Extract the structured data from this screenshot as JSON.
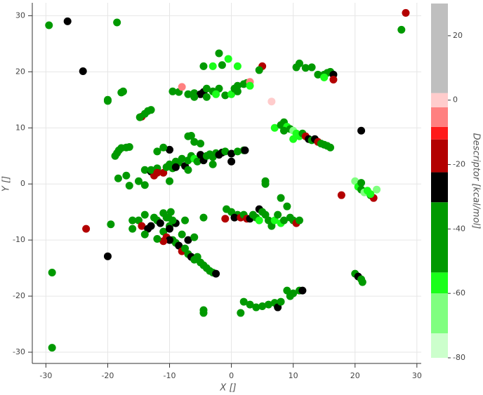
{
  "chart_data": {
    "type": "scatter",
    "xlabel": "X []",
    "ylabel": "Y []",
    "xlim": [
      -32.2,
      30.7
    ],
    "ylim": [
      -32,
      32.3
    ],
    "xticks": [
      -30,
      -20,
      -10,
      0,
      10,
      20,
      30
    ],
    "yticks": [
      -30,
      -20,
      -10,
      0,
      10,
      20,
      30
    ],
    "grid": true,
    "colorbar": {
      "label": "Descriptor [kcal/mol]",
      "lim": [
        -80,
        30
      ],
      "ticks": [
        20,
        0,
        -20,
        -40,
        -60,
        -80
      ],
      "bounds": [
        -80,
        -72.4,
        -60,
        -53.5,
        -31.7,
        -22.4,
        -12.2,
        -8.3,
        -2.2,
        2.2,
        30
      ],
      "colors": [
        "#ccffcc",
        "#80ff80",
        "#1aff1a",
        "#009900",
        "#000000",
        "#b30000",
        "#ff1a1a",
        "#ff8080",
        "#ffcccc",
        "#bfbfbf"
      ]
    },
    "points": [
      [
        -29.5,
        28.3,
        -42
      ],
      [
        -26.5,
        29,
        -27
      ],
      [
        -18.5,
        28.8,
        -42
      ],
      [
        28.2,
        30.5,
        -18
      ],
      [
        27.5,
        27.5,
        -42
      ],
      [
        -24,
        20.1,
        -27
      ],
      [
        -29,
        -15.8,
        -42
      ],
      [
        -29,
        -29.2,
        -42
      ],
      [
        -23.5,
        -8,
        -18
      ],
      [
        -20,
        -12.9,
        -27
      ],
      [
        -19.5,
        -7.2,
        -42
      ],
      [
        -20,
        14.8,
        -42
      ],
      [
        -20,
        15,
        -42
      ],
      [
        -17.5,
        16.5,
        -42
      ],
      [
        -17.8,
        16.3,
        -42
      ],
      [
        -14.5,
        12,
        -18
      ],
      [
        -14,
        12.5,
        -42
      ],
      [
        -13.5,
        13,
        -42
      ],
      [
        -13,
        13.2,
        -42
      ],
      [
        -14.8,
        11.9,
        -42
      ],
      [
        -18.5,
        5.5,
        -42
      ],
      [
        -18.2,
        6,
        -42
      ],
      [
        -17.8,
        6.4,
        -42
      ],
      [
        -17,
        6.5,
        -42
      ],
      [
        -16.5,
        6.6,
        -42
      ],
      [
        -18.8,
        5,
        -42
      ],
      [
        -18.3,
        1,
        -42
      ],
      [
        -17,
        1.5,
        -42
      ],
      [
        -16.5,
        -0.3,
        -42
      ],
      [
        -14,
        2.5,
        -42
      ],
      [
        -13,
        2.2,
        -27
      ],
      [
        -12.5,
        1.5,
        -18
      ],
      [
        -12,
        2.8,
        -42
      ],
      [
        -11,
        2,
        -18
      ],
      [
        -10.5,
        3,
        -42
      ],
      [
        -10,
        3.5,
        -42
      ],
      [
        -9.5,
        2.8,
        -42
      ],
      [
        -9,
        4,
        -42
      ],
      [
        -8.5,
        3.8,
        -42
      ],
      [
        -8,
        4.5,
        -42
      ],
      [
        -7.5,
        3.2,
        -27
      ],
      [
        -7,
        4.2,
        -42
      ],
      [
        -6.5,
        5,
        -42
      ],
      [
        -6,
        4.5,
        -58
      ],
      [
        -5.5,
        4,
        -42
      ],
      [
        -5,
        5.2,
        -27
      ],
      [
        -4.5,
        4.2,
        -27
      ],
      [
        -4,
        5,
        -42
      ],
      [
        -3.5,
        5.3,
        -42
      ],
      [
        -3,
        4.8,
        -42
      ],
      [
        -2.5,
        5.5,
        -42
      ],
      [
        -2,
        5.2,
        -27
      ],
      [
        -1.5,
        5.6,
        -27
      ],
      [
        -1,
        5.8,
        -42
      ],
      [
        0,
        5.4,
        -27
      ],
      [
        1,
        5.8,
        -42
      ],
      [
        2,
        6,
        -42
      ],
      [
        2.2,
        6,
        -27
      ],
      [
        -10,
        6.1,
        -27
      ],
      [
        -11,
        6.5,
        -42
      ],
      [
        -12,
        5.8,
        -42
      ],
      [
        -13,
        2.5,
        -42
      ],
      [
        -9,
        3,
        -27
      ],
      [
        -6,
        7.5,
        -42
      ],
      [
        -5,
        7.2,
        -42
      ],
      [
        -7,
        8.5,
        -42
      ],
      [
        -6.5,
        8.6,
        -42
      ],
      [
        -7,
        2.5,
        -42
      ],
      [
        -3,
        3.5,
        -42
      ],
      [
        0,
        4,
        -27
      ],
      [
        -14,
        -0.2,
        -42
      ],
      [
        -15,
        0.5,
        -42
      ],
      [
        -12,
        2,
        -18
      ],
      [
        -10,
        0.5,
        -42
      ],
      [
        -9.5,
        16.5,
        -42
      ],
      [
        -8.5,
        16.4,
        -42
      ],
      [
        -8,
        17.3,
        -6
      ],
      [
        -7,
        16,
        -42
      ],
      [
        -6,
        16.2,
        -42
      ],
      [
        -5,
        16,
        -27
      ],
      [
        -4.5,
        16.4,
        -27
      ],
      [
        -4,
        17,
        -42
      ],
      [
        -3,
        16.5,
        -42
      ],
      [
        -2,
        17,
        -42
      ],
      [
        -1,
        15.8,
        -42
      ],
      [
        0,
        16,
        -58
      ],
      [
        0.5,
        17,
        -42
      ],
      [
        1,
        17.5,
        -42
      ],
      [
        2,
        17.8,
        -42
      ],
      [
        2.5,
        18,
        -42
      ],
      [
        3,
        18.2,
        -6
      ],
      [
        3,
        17.5,
        -58
      ],
      [
        -6,
        15.5,
        -42
      ],
      [
        -4,
        15.5,
        -42
      ],
      [
        -2.5,
        16,
        -58
      ],
      [
        1,
        16.5,
        -42
      ],
      [
        -1.5,
        21.2,
        -42
      ],
      [
        -3,
        21,
        -58
      ],
      [
        -4.5,
        21,
        -42
      ],
      [
        -2,
        23.3,
        -42
      ],
      [
        -0.5,
        22.3,
        -58
      ],
      [
        1,
        21,
        -58
      ],
      [
        5,
        21,
        -18
      ],
      [
        4.5,
        20.3,
        -42
      ],
      [
        6.5,
        14.7,
        0
      ],
      [
        10.5,
        20.8,
        -42
      ],
      [
        11,
        21.5,
        -42
      ],
      [
        12,
        20.7,
        -42
      ],
      [
        13,
        20.8,
        -42
      ],
      [
        14,
        19.5,
        -42
      ],
      [
        15,
        19.5,
        -42
      ],
      [
        15.5,
        19.8,
        -42
      ],
      [
        16,
        20,
        -42
      ],
      [
        16.5,
        19.5,
        -27
      ],
      [
        16.5,
        18.6,
        -18
      ],
      [
        15,
        19,
        -58
      ],
      [
        7,
        10,
        -58
      ],
      [
        8,
        10.5,
        -42
      ],
      [
        8.5,
        11,
        -42
      ],
      [
        9,
        10.2,
        -58
      ],
      [
        9.5,
        9.8,
        -42
      ],
      [
        10,
        9.5,
        -68
      ],
      [
        10.5,
        9,
        -58
      ],
      [
        11,
        8.5,
        -58
      ],
      [
        11.5,
        9,
        -42
      ],
      [
        12,
        8.5,
        -18
      ],
      [
        12.5,
        8,
        -27
      ],
      [
        13,
        7.8,
        -42
      ],
      [
        13.5,
        8,
        -27
      ],
      [
        14,
        7.5,
        -18
      ],
      [
        14.5,
        7.2,
        -42
      ],
      [
        15,
        7,
        -42
      ],
      [
        15.5,
        6.8,
        -42
      ],
      [
        16,
        6.5,
        -42
      ],
      [
        10,
        8,
        -58
      ],
      [
        8.5,
        9.5,
        -42
      ],
      [
        21,
        9.5,
        -27
      ],
      [
        20,
        0.5,
        -68
      ],
      [
        20.5,
        -0.5,
        -58
      ],
      [
        21,
        -1,
        -42
      ],
      [
        21.5,
        -1.5,
        -68
      ],
      [
        22,
        -1.2,
        -58
      ],
      [
        22.5,
        -2,
        -42
      ],
      [
        23,
        -2.5,
        -18
      ],
      [
        23.5,
        -1,
        -68
      ],
      [
        22.5,
        -1.8,
        -58
      ],
      [
        17.8,
        -2,
        -18
      ],
      [
        21,
        0.2,
        -42
      ],
      [
        20,
        -16,
        -42
      ],
      [
        20.5,
        -16.5,
        -27
      ],
      [
        21,
        -17,
        -42
      ],
      [
        21.2,
        -17.5,
        -42
      ],
      [
        -0.8,
        -4.5,
        -42
      ],
      [
        0,
        -5,
        -42
      ],
      [
        1,
        -5.5,
        -42
      ],
      [
        -1,
        -6.2,
        -18
      ],
      [
        0.5,
        -6,
        -27
      ],
      [
        1.5,
        -6,
        -18
      ],
      [
        2,
        -5.5,
        -42
      ],
      [
        2.5,
        -6.2,
        -18
      ],
      [
        3,
        -6.2,
        -27
      ],
      [
        3.5,
        -5.5,
        -42
      ],
      [
        4,
        -6,
        -42
      ],
      [
        4.5,
        -4.5,
        -27
      ],
      [
        5,
        -5,
        -42
      ],
      [
        5.5,
        -5.5,
        -42
      ],
      [
        6,
        -6.5,
        -42
      ],
      [
        6.5,
        -7.5,
        -42
      ],
      [
        7,
        -6.5,
        -58
      ],
      [
        7.5,
        -5.5,
        -42
      ],
      [
        8,
        -7,
        -58
      ],
      [
        8.5,
        -6.5,
        -42
      ],
      [
        9,
        -4,
        -42
      ],
      [
        9.5,
        -6,
        -42
      ],
      [
        10,
        -6.5,
        -42
      ],
      [
        10.5,
        -7,
        -18
      ],
      [
        11,
        -6.5,
        -42
      ],
      [
        8,
        -2.5,
        -42
      ],
      [
        5.5,
        0.5,
        -42
      ],
      [
        5.5,
        0,
        -42
      ],
      [
        4.5,
        -6.5,
        -58
      ],
      [
        -15,
        -6.5,
        -42
      ],
      [
        -14.5,
        -7.5,
        -18
      ],
      [
        -14,
        -5.5,
        -42
      ],
      [
        -13.5,
        -8,
        -27
      ],
      [
        -13,
        -7.5,
        -27
      ],
      [
        -12.5,
        -6,
        -42
      ],
      [
        -12,
        -6.5,
        -42
      ],
      [
        -11.5,
        -7,
        -27
      ],
      [
        -11,
        -8.5,
        -42
      ],
      [
        -10.5,
        -9.5,
        -18
      ],
      [
        -10,
        -7.5,
        -42
      ],
      [
        -9.5,
        -10,
        -42
      ],
      [
        -9,
        -10.5,
        -42
      ],
      [
        -8.5,
        -11,
        -27
      ],
      [
        -8,
        -12,
        -18
      ],
      [
        -7.5,
        -11.5,
        -42
      ],
      [
        -7,
        -12.5,
        -42
      ],
      [
        -6.5,
        -13,
        -27
      ],
      [
        -6,
        -13.5,
        -42
      ],
      [
        -5.5,
        -13,
        -42
      ],
      [
        -5,
        -14,
        -42
      ],
      [
        -4.5,
        -14.5,
        -42
      ],
      [
        -4,
        -15,
        -42
      ],
      [
        -3.5,
        -15.5,
        -42
      ],
      [
        -3,
        -15.8,
        -42
      ],
      [
        -2.5,
        -16,
        -27
      ],
      [
        -7,
        -10,
        -27
      ],
      [
        -8,
        -9,
        -42
      ],
      [
        -9,
        -7,
        -27
      ],
      [
        -10,
        -8,
        -27
      ],
      [
        -9.5,
        -6.5,
        -42
      ],
      [
        -10.5,
        -6,
        -42
      ],
      [
        -10,
        -10,
        -27
      ],
      [
        -11,
        -10.2,
        -18
      ],
      [
        -12,
        -9.8,
        -42
      ],
      [
        -16,
        -8,
        -42
      ],
      [
        -14,
        -9,
        -42
      ],
      [
        -16,
        -6.5,
        -42
      ],
      [
        -11,
        -5.2,
        -42
      ],
      [
        -9.8,
        -5,
        -42
      ],
      [
        -10.2,
        -6,
        -42
      ],
      [
        -4.5,
        -6,
        -42
      ],
      [
        -6,
        -9.5,
        -42
      ],
      [
        -7.5,
        -6.5,
        -42
      ],
      [
        2,
        -21,
        -42
      ],
      [
        3,
        -21.5,
        -42
      ],
      [
        4,
        -22,
        -42
      ],
      [
        5,
        -21.8,
        -42
      ],
      [
        6,
        -21.5,
        -42
      ],
      [
        7,
        -21.2,
        -42
      ],
      [
        7.5,
        -22,
        -27
      ],
      [
        8,
        -21,
        -42
      ],
      [
        9,
        -19,
        -42
      ],
      [
        10,
        -19.5,
        -42
      ],
      [
        11,
        -19,
        -42
      ],
      [
        11.5,
        -19,
        -27
      ],
      [
        9.5,
        -20,
        -42
      ],
      [
        1.5,
        -23,
        -42
      ],
      [
        -4.5,
        -22.5,
        -42
      ],
      [
        -4.5,
        -23,
        -42
      ]
    ]
  }
}
